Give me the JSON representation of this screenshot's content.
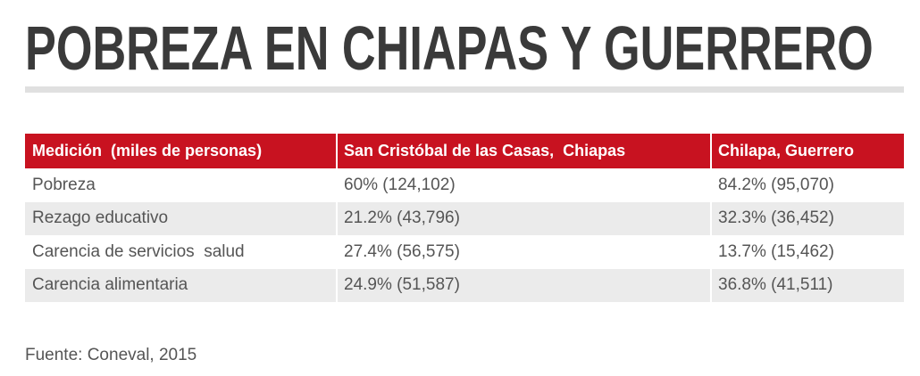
{
  "chart_data": {
    "type": "table",
    "title": "POBREZA EN CHIAPAS Y GUERRERO",
    "columns": [
      "Medición  (miles de personas)",
      "San Cristóbal de las Casas,  Chiapas",
      "Chilapa, Guerrero"
    ],
    "rows": [
      [
        "Pobreza",
        "60% (124,102)",
        "84.2% (95,070)"
      ],
      [
        "Rezago educativo",
        "21.2% (43,796)",
        "32.3% (36,452)"
      ],
      [
        "Carencia de servicios  salud",
        "27.4% (56,575)",
        "13.7% (15,462)"
      ],
      [
        "Carencia alimentaria",
        "24.9% (51,587)",
        "36.8% (41,511)"
      ]
    ],
    "source": "Fuente: Coneval, 2015"
  },
  "colors": {
    "title": "#3a3a3a",
    "rule": "#e0e0e0",
    "header_bg": "#c81220",
    "header_text": "#ffffff",
    "body_text": "#555555",
    "row_alt_bg": "#ebebeb"
  }
}
